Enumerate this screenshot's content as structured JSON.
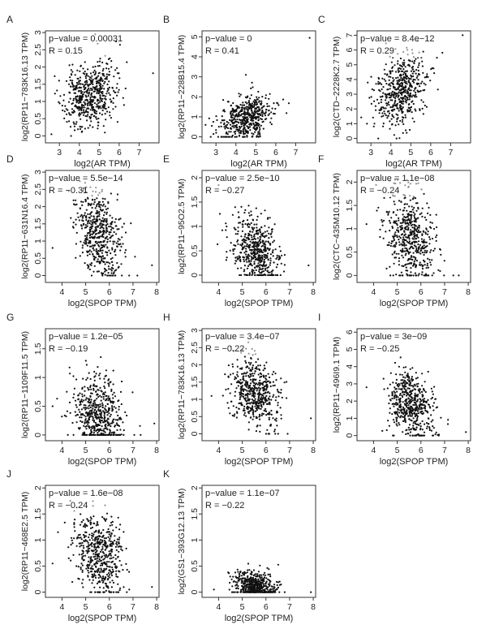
{
  "figure": {
    "description_label": "Scatter plot panels A–K"
  },
  "chart_data": [
    {
      "type": "scatter",
      "panel": "A",
      "xlabel": "log2(AR TPM)",
      "ylabel": "log2(RP11−783K16.13 TPM)",
      "pvalue_text": "p−value = 0.00031",
      "r_text": "R = 0.15",
      "xlim": [
        2.3,
        8.0
      ],
      "ylim": [
        -0.2,
        3.05
      ],
      "xticks": [
        3,
        4,
        5,
        6,
        7
      ],
      "yticks": [
        0.0,
        0.5,
        1.0,
        1.5,
        2.0,
        2.5,
        3.0
      ],
      "gen": {
        "n": 520,
        "xmean": 4.5,
        "xsd": 0.65,
        "ymean": 1.15,
        "ysd": 0.45,
        "r": 0.15,
        "ymin": -0.05,
        "ymax": 2.8,
        "floor": 0.0,
        "seed": 11
      },
      "outliers": [
        [
          7.7,
          1.82
        ],
        [
          4.8,
          2.95
        ],
        [
          2.6,
          0.05
        ]
      ]
    },
    {
      "type": "scatter",
      "panel": "B",
      "xlabel": "log2(AR TPM)",
      "ylabel": "log2(RP11−228B15.4 TPM)",
      "pvalue_text": "p−value = 0",
      "r_text": "R = 0.41",
      "xlim": [
        2.3,
        8.0
      ],
      "ylim": [
        -0.3,
        5.3
      ],
      "xticks": [
        3,
        4,
        5,
        6,
        7
      ],
      "yticks": [
        0,
        1,
        2,
        3,
        4,
        5
      ],
      "gen": {
        "n": 520,
        "xmean": 4.5,
        "xsd": 0.65,
        "ymean": 0.95,
        "ysd": 0.55,
        "r": 0.41,
        "ymin": 0.0,
        "ymax": 3.1,
        "floor": 0.0,
        "seed": 22
      },
      "outliers": [
        [
          7.7,
          4.95
        ],
        [
          4.5,
          3.1
        ]
      ]
    },
    {
      "type": "scatter",
      "panel": "C",
      "xlabel": "log2(AR TPM)",
      "ylabel": "log2(CTD−2228K2.7 TPM)",
      "pvalue_text": "p−value = 8.4e−12",
      "r_text": "R = 0.29",
      "xlim": [
        2.3,
        8.0
      ],
      "ylim": [
        -0.3,
        7.3
      ],
      "xticks": [
        3,
        4,
        5,
        6,
        7
      ],
      "yticks": [
        0,
        1,
        2,
        3,
        4,
        5,
        6,
        7
      ],
      "gen": {
        "n": 520,
        "xmean": 4.5,
        "xsd": 0.65,
        "ymean": 3.2,
        "ysd": 1.2,
        "r": 0.29,
        "ymin": 0.0,
        "ymax": 6.8,
        "floor": 0.0,
        "seed": 33
      },
      "outliers": [
        [
          7.6,
          7.0
        ],
        [
          2.8,
          1.0
        ]
      ]
    },
    {
      "type": "scatter",
      "panel": "D",
      "xlabel": "log2(SPOP TPM)",
      "ylabel": "log2(RP11−631N16.4 TPM)",
      "pvalue_text": "p−value = 5.5e−14",
      "r_text": "R = −0.31",
      "xlim": [
        3.3,
        8.1
      ],
      "ylim": [
        -0.2,
        3.05
      ],
      "xticks": [
        4,
        5,
        6,
        7,
        8
      ],
      "yticks": [
        0.0,
        0.5,
        1.0,
        1.5,
        2.0,
        2.5,
        3.0
      ],
      "gen": {
        "n": 520,
        "xmean": 5.55,
        "xsd": 0.5,
        "ymean": 1.15,
        "ysd": 0.6,
        "r": -0.31,
        "ymin": 0.0,
        "ymax": 2.8,
        "floor": 0.0,
        "seed": 44
      },
      "outliers": [
        [
          7.8,
          0.3
        ],
        [
          3.6,
          0.8
        ]
      ]
    },
    {
      "type": "scatter",
      "panel": "E",
      "xlabel": "log2(SPOP TPM)",
      "ylabel": "log2(RP11−95O2.5 TPM)",
      "pvalue_text": "p−value = 2.5e−10",
      "r_text": "R = −0.27",
      "xlim": [
        3.3,
        8.1
      ],
      "ylim": [
        -0.15,
        2.15
      ],
      "xticks": [
        4,
        5,
        6,
        7,
        8
      ],
      "yticks": [
        0.0,
        0.5,
        1.0,
        1.5,
        2.0
      ],
      "gen": {
        "n": 520,
        "xmean": 5.55,
        "xsd": 0.5,
        "ymean": 0.5,
        "ysd": 0.35,
        "r": -0.27,
        "ymin": 0.0,
        "ymax": 1.8,
        "floor": 0.0,
        "seed": 55
      },
      "outliers": [
        [
          4.0,
          1.85
        ],
        [
          7.8,
          0.2
        ]
      ]
    },
    {
      "type": "scatter",
      "panel": "F",
      "xlabel": "log2(SPOP TPM)",
      "ylabel": "log2(CTC−435M10.12 TPM)",
      "pvalue_text": "p−value = 1.1e−08",
      "r_text": "R = −0.24",
      "xlim": [
        3.3,
        8.1
      ],
      "ylim": [
        -0.15,
        2.25
      ],
      "xticks": [
        4,
        5,
        6,
        7,
        8
      ],
      "yticks": [
        0.0,
        0.5,
        1.0,
        1.5,
        2.0
      ],
      "gen": {
        "n": 520,
        "xmean": 5.55,
        "xsd": 0.5,
        "ymean": 0.85,
        "ysd": 0.5,
        "r": -0.24,
        "ymin": 0.0,
        "ymax": 2.05,
        "floor": 0.0,
        "seed": 66
      },
      "outliers": [
        [
          7.6,
          0.0
        ],
        [
          3.7,
          1.1
        ]
      ]
    },
    {
      "type": "scatter",
      "panel": "G",
      "xlabel": "log2(SPOP TPM)",
      "ylabel": "log2(RP11−1109F11.5 TPM)",
      "pvalue_text": "p−value = 1.2e−05",
      "r_text": "R = −0.19",
      "xlim": [
        3.3,
        8.1
      ],
      "ylim": [
        -0.1,
        1.85
      ],
      "xticks": [
        4,
        5,
        6,
        7,
        8
      ],
      "yticks": [
        0.0,
        0.5,
        1.0,
        1.5
      ],
      "gen": {
        "n": 520,
        "xmean": 5.55,
        "xsd": 0.5,
        "ymean": 0.35,
        "ysd": 0.35,
        "r": -0.19,
        "ymin": 0.0,
        "ymax": 1.4,
        "floor": 0.0,
        "seed": 77
      },
      "outliers": [
        [
          7.9,
          0.2
        ],
        [
          3.6,
          0.5
        ]
      ]
    },
    {
      "type": "scatter",
      "panel": "H",
      "xlabel": "log2(SPOP TPM)",
      "ylabel": "log2(RP11−783K16.13 TPM)",
      "pvalue_text": "p−value = 3.4e−07",
      "r_text": "R = −0.22",
      "xlim": [
        3.3,
        8.1
      ],
      "ylim": [
        -0.2,
        3.05
      ],
      "xticks": [
        4,
        5,
        6,
        7,
        8
      ],
      "yticks": [
        0.0,
        0.5,
        1.0,
        1.5,
        2.0,
        2.5,
        3.0
      ],
      "gen": {
        "n": 520,
        "xmean": 5.55,
        "xsd": 0.5,
        "ymean": 1.2,
        "ysd": 0.5,
        "r": -0.22,
        "ymin": 0.0,
        "ymax": 2.75,
        "floor": 0.0,
        "seed": 88
      },
      "outliers": [
        [
          7.9,
          0.45
        ],
        [
          3.7,
          1.1
        ]
      ]
    },
    {
      "type": "scatter",
      "panel": "I",
      "xlabel": "log2(SPOP TPM)",
      "ylabel": "log2(RP11−496I9.1 TPM)",
      "pvalue_text": "p−value = 3e−09",
      "r_text": "R = −0.25",
      "xlim": [
        3.3,
        8.1
      ],
      "ylim": [
        -0.3,
        6.2
      ],
      "xticks": [
        4,
        5,
        6,
        7,
        8
      ],
      "yticks": [
        0,
        1,
        2,
        3,
        4,
        5,
        6
      ],
      "gen": {
        "n": 520,
        "xmean": 5.55,
        "xsd": 0.5,
        "ymean": 1.8,
        "ysd": 1.0,
        "r": -0.25,
        "ymin": 0.0,
        "ymax": 4.6,
        "floor": 0.0,
        "seed": 99
      },
      "outliers": [
        [
          7.9,
          0.2
        ],
        [
          3.7,
          2.8
        ]
      ]
    },
    {
      "type": "scatter",
      "panel": "J",
      "xlabel": "log2(SPOP TPM)",
      "ylabel": "log2(RP11−468E2.5 TPM)",
      "pvalue_text": "p−value = 1.6e−08",
      "r_text": "R = −0.24",
      "xlim": [
        3.3,
        8.1
      ],
      "ylim": [
        -0.1,
        2.05
      ],
      "xticks": [
        4,
        5,
        6,
        7,
        8
      ],
      "yticks": [
        0.0,
        0.5,
        1.0,
        1.5,
        2.0
      ],
      "gen": {
        "n": 520,
        "xmean": 5.55,
        "xsd": 0.5,
        "ymean": 0.75,
        "ysd": 0.4,
        "r": -0.24,
        "ymin": 0.0,
        "ymax": 1.8,
        "floor": 0.0,
        "seed": 111
      },
      "outliers": [
        [
          7.8,
          0.1
        ],
        [
          3.6,
          0.55
        ]
      ]
    },
    {
      "type": "scatter",
      "panel": "K",
      "xlabel": "log2(SPOP TPM)",
      "ylabel": "log2(GS1−393G12.13 TPM)",
      "pvalue_text": "p−value = 1.1e−07",
      "r_text": "R = −0.22",
      "xlim": [
        3.3,
        8.1
      ],
      "ylim": [
        -0.1,
        2.05
      ],
      "xticks": [
        4,
        5,
        6,
        7,
        8
      ],
      "yticks": [
        0.0,
        0.5,
        1.0,
        1.5,
        2.0
      ],
      "gen": {
        "n": 520,
        "xmean": 5.55,
        "xsd": 0.45,
        "ymean": 0.1,
        "ysd": 0.15,
        "r": -0.22,
        "ymin": 0.0,
        "ymax": 0.75,
        "floor": 0.0,
        "seed": 122
      },
      "outliers": [
        [
          7.9,
          0.0
        ],
        [
          3.8,
          0.05
        ]
      ]
    }
  ]
}
